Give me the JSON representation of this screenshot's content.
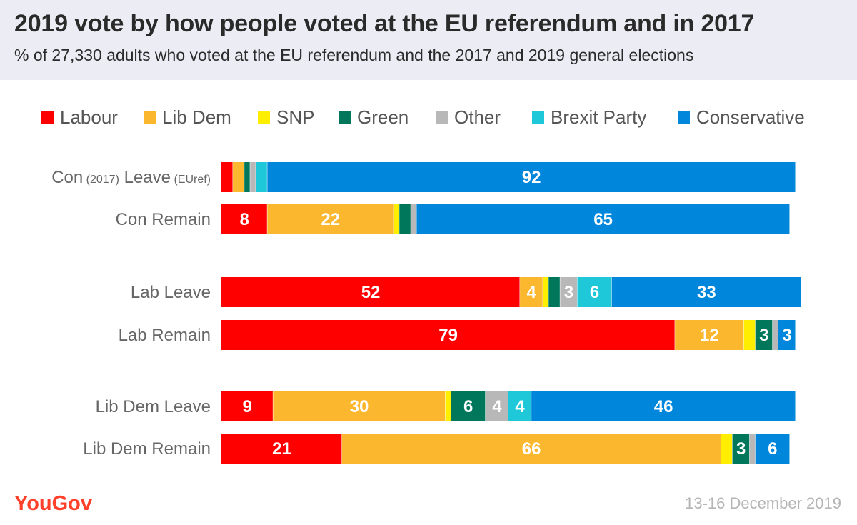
{
  "title": "2019 vote by how people voted at the EU referendum and in 2017",
  "subtitle": "% of 27,330 adults who voted at the EU referendum and the 2017 and 2019 general elections",
  "footer": {
    "date": "13-16 December 2019",
    "logo_text": "YouGov"
  },
  "chart_data": {
    "type": "bar",
    "orientation": "horizontal",
    "stacked": true,
    "xlim": [
      0,
      100
    ],
    "legend_position": "top",
    "series": [
      {
        "name": "Labour",
        "color": "#ff0000",
        "values": [
          2,
          8,
          52,
          79,
          9,
          21
        ]
      },
      {
        "name": "Lib Dem",
        "color": "#fbb72d",
        "values": [
          2,
          22,
          4,
          12,
          30,
          66
        ]
      },
      {
        "name": "SNP",
        "color": "#ffee00",
        "values": [
          0,
          1,
          1,
          2,
          1,
          2
        ]
      },
      {
        "name": "Green",
        "color": "#00775a",
        "values": [
          1,
          2,
          2,
          3,
          6,
          3
        ]
      },
      {
        "name": "Other",
        "color": "#b8b8b8",
        "values": [
          1,
          1,
          3,
          1,
          4,
          1
        ]
      },
      {
        "name": "Brexit Party",
        "color": "#1fc8d9",
        "values": [
          2,
          0,
          6,
          0,
          4,
          0
        ]
      },
      {
        "name": "Conservative",
        "color": "#0087dc",
        "values": [
          92,
          65,
          33,
          3,
          46,
          6
        ]
      }
    ],
    "categories": [
      {
        "main1": "Con",
        "small1": "(2017)",
        "main2": "Leave",
        "small2": "(EUref)"
      },
      {
        "main1": "Con Remain"
      },
      {
        "main1": "Lab Leave"
      },
      {
        "main1": "Lab Remain"
      },
      {
        "main1": "Lib Dem Leave"
      },
      {
        "main1": "Lib Dem Remain"
      }
    ],
    "data_labels": [
      [
        null,
        null,
        null,
        null,
        null,
        null,
        "92"
      ],
      [
        "8",
        "22",
        null,
        null,
        null,
        null,
        "65"
      ],
      [
        "52",
        "4",
        null,
        null,
        "3",
        "6",
        "33"
      ],
      [
        "79",
        "12",
        null,
        "3",
        null,
        null,
        "3"
      ],
      [
        "9",
        "30",
        null,
        "6",
        "4",
        "4",
        "46"
      ],
      [
        "21",
        "66",
        null,
        "3",
        null,
        null,
        "6"
      ]
    ]
  }
}
